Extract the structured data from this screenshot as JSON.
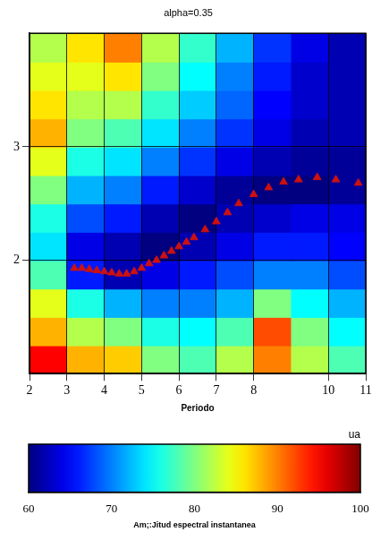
{
  "chart_data": {
    "type": "heatmap",
    "title": "alpha=0.35",
    "x_label": "Periodo",
    "xlim": [
      2,
      11
    ],
    "xticks": [
      2,
      3,
      4,
      5,
      6,
      7,
      8,
      10,
      11
    ],
    "ylim": [
      1,
      4
    ],
    "yticks": [
      2,
      3
    ],
    "grid": true,
    "heatmap": {
      "x_edges": [
        2,
        3,
        4,
        5,
        6,
        7,
        8,
        9,
        10,
        11
      ],
      "y_edges": [
        1,
        1.25,
        1.5,
        1.75,
        2,
        2.25,
        2.5,
        2.75,
        3,
        3.25,
        3.5,
        3.75,
        4
      ],
      "values": [
        [
          95,
          88,
          87,
          80,
          78,
          82,
          90,
          82,
          78
        ],
        [
          88,
          82,
          80,
          76,
          75,
          78,
          92,
          80,
          75
        ],
        [
          84,
          76,
          72,
          70,
          70,
          72,
          80,
          75,
          72
        ],
        [
          78,
          66,
          62,
          64,
          66,
          68,
          70,
          70,
          68
        ],
        [
          74,
          64,
          62,
          60,
          62,
          64,
          66,
          66,
          65
        ],
        [
          76,
          68,
          66,
          62,
          60,
          62,
          63,
          64,
          64
        ],
        [
          80,
          72,
          70,
          66,
          63,
          61,
          60,
          60,
          61
        ],
        [
          84,
          76,
          74,
          70,
          67,
          64,
          62,
          61,
          61
        ],
        [
          88,
          80,
          78,
          74,
          70,
          67,
          64,
          62,
          62
        ],
        [
          86,
          82,
          82,
          77,
          73,
          69,
          65,
          63,
          62
        ],
        [
          84,
          84,
          86,
          80,
          75,
          70,
          66,
          63,
          62
        ],
        [
          82,
          86,
          90,
          82,
          77,
          72,
          67,
          64,
          62
        ]
      ]
    },
    "colorbar": {
      "range": [
        60,
        100
      ],
      "ticks": [
        60,
        70,
        80,
        90,
        100
      ],
      "label": "Am;:Jitud espectral instantanea",
      "unit": "ua"
    },
    "series": [
      {
        "type": "scatter",
        "color": "#cc1111",
        "marker": "triangle",
        "x": [
          3.2,
          3.4,
          3.6,
          3.8,
          4.0,
          4.2,
          4.4,
          4.6,
          4.8,
          5.0,
          5.2,
          5.4,
          5.6,
          5.8,
          6.0,
          6.2,
          6.4,
          6.7,
          7.0,
          7.3,
          7.6,
          8.0,
          8.4,
          8.8,
          9.2,
          9.7,
          10.2,
          10.8
        ],
        "values": [
          1.93,
          1.93,
          1.92,
          1.91,
          1.9,
          1.89,
          1.88,
          1.88,
          1.9,
          1.93,
          1.97,
          2.0,
          2.04,
          2.08,
          2.12,
          2.16,
          2.2,
          2.27,
          2.34,
          2.42,
          2.5,
          2.58,
          2.64,
          2.69,
          2.71,
          2.73,
          2.71,
          2.68
        ]
      }
    ]
  }
}
